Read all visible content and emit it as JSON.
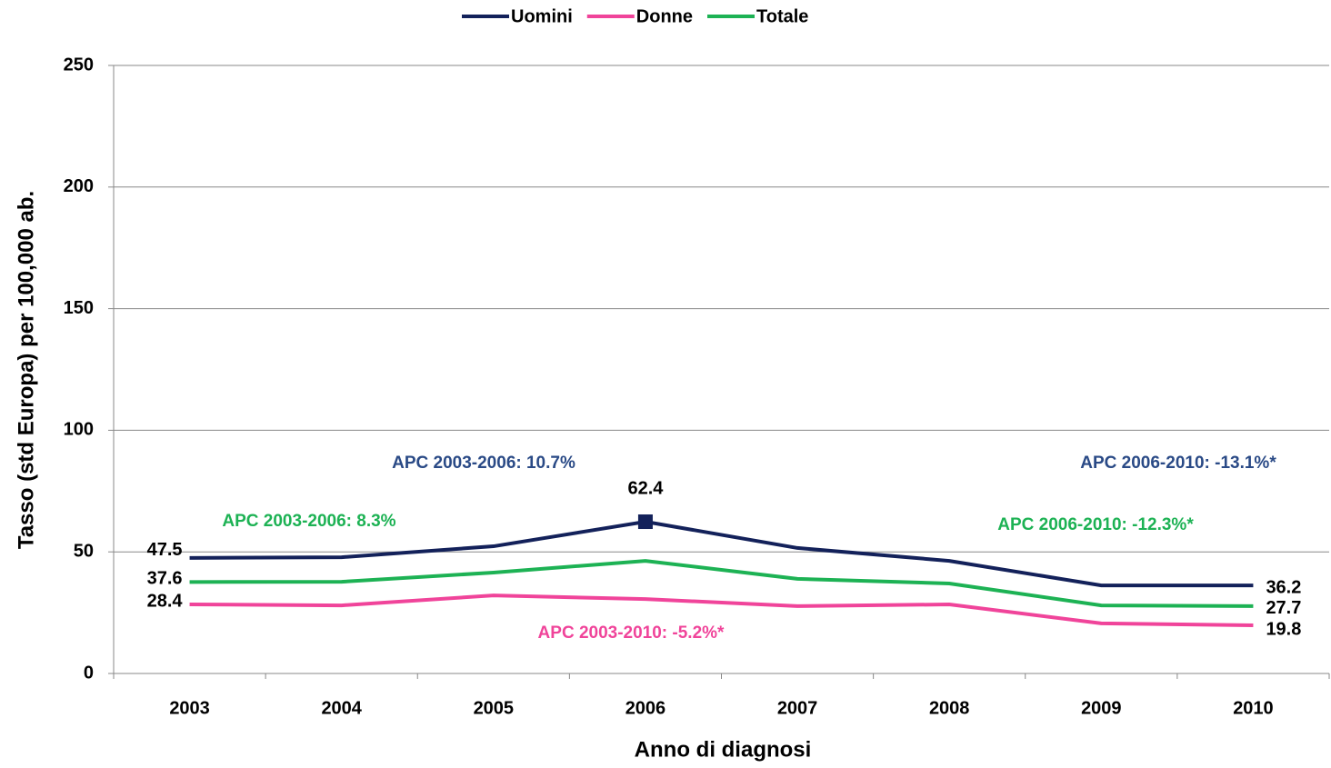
{
  "chart_data": {
    "type": "line",
    "x_label": "Anno di diagnosi",
    "y_label": "Tasso (std Europa) per 100,000 ab.",
    "categories": [
      "2003",
      "2004",
      "2005",
      "2006",
      "2007",
      "2008",
      "2009",
      "2010"
    ],
    "series": [
      {
        "name": "Uomini",
        "color": "#13215a",
        "values": [
          47.5,
          47.8,
          52.3,
          62.4,
          51.6,
          46.3,
          36.2,
          36.2
        ],
        "value_labels": [
          "47.5",
          null,
          null,
          "62.4",
          null,
          null,
          null,
          "36.2"
        ]
      },
      {
        "name": "Donne",
        "color": "#f0449a",
        "values": [
          28.4,
          28.0,
          32.1,
          30.6,
          27.7,
          28.4,
          20.6,
          19.8
        ],
        "value_labels": [
          "28.4",
          null,
          null,
          null,
          null,
          null,
          null,
          "19.8"
        ]
      },
      {
        "name": "Totale",
        "color": "#1db254",
        "values": [
          37.6,
          37.7,
          41.5,
          46.3,
          38.9,
          37.0,
          28.0,
          27.7
        ],
        "value_labels": [
          "37.6",
          null,
          null,
          null,
          null,
          null,
          null,
          "27.7"
        ]
      }
    ],
    "annotations": [
      {
        "text": "APC 2003-2006:  10.7%",
        "color": "#2a4a86"
      },
      {
        "text": "APC 2003-2006:  8.3%",
        "color": "#1db254"
      },
      {
        "text": "APC 2003-2010:  -5.2%*",
        "color": "#f0449a"
      },
      {
        "text": "APC 2006-2010:  -13.1%*",
        "color": "#2a4a86"
      },
      {
        "text": "APC 2006-2010:  -12.3%*",
        "color": "#1db254"
      }
    ],
    "ylim": [
      0,
      250
    ],
    "yticks": [
      0,
      50,
      100,
      150,
      200,
      250
    ],
    "grid": true,
    "legend": "top"
  }
}
